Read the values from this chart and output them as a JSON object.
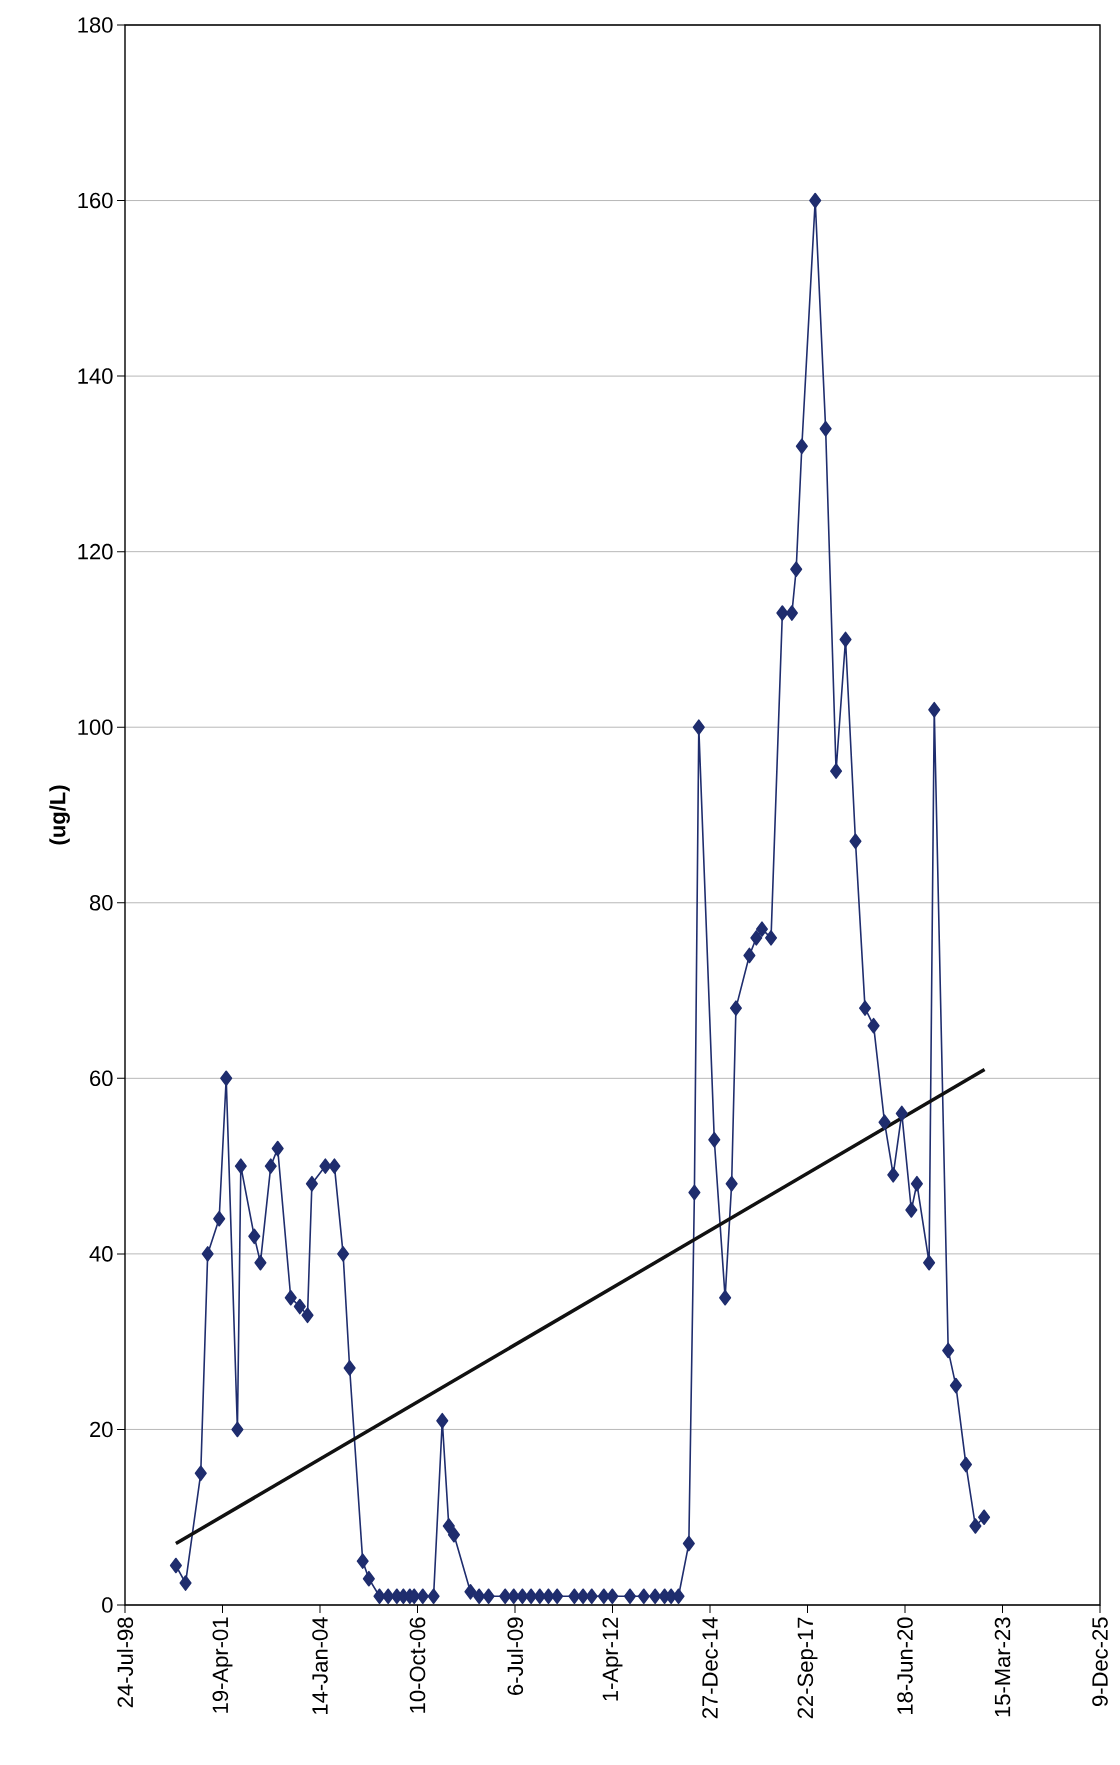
{
  "chart_data": {
    "type": "line",
    "ylabel": "(ug/L)",
    "xlim": [
      "1998-07-24",
      "2025-12-09"
    ],
    "xticks": [
      {
        "value": "1998-07-24",
        "label": "24-Jul-98"
      },
      {
        "value": "2001-04-19",
        "label": "19-Apr-01"
      },
      {
        "value": "2004-01-14",
        "label": "14-Jan-04"
      },
      {
        "value": "2006-10-10",
        "label": "10-Oct-06"
      },
      {
        "value": "2009-07-06",
        "label": "6-Jul-09"
      },
      {
        "value": "2012-04-01",
        "label": "1-Apr-12"
      },
      {
        "value": "2014-12-27",
        "label": "27-Dec-14"
      },
      {
        "value": "2017-09-22",
        "label": "22-Sep-17"
      },
      {
        "value": "2020-06-18",
        "label": "18-Jun-20"
      },
      {
        "value": "2023-03-15",
        "label": "15-Mar-23"
      },
      {
        "value": "2025-12-09",
        "label": "9-Dec-25"
      }
    ],
    "ylim": [
      0,
      180
    ],
    "yticks": [
      0,
      20,
      40,
      60,
      80,
      100,
      120,
      140,
      160,
      180
    ],
    "grid": "y",
    "series": [
      {
        "color": "#1f2d6e",
        "marker": "diamond",
        "line_style": "solid",
        "x": [
          "1999-12-28",
          "2000-04-05",
          "2000-09-08",
          "2000-11-18",
          "2001-03-16",
          "2001-05-27",
          "2001-09-19",
          "2001-10-24",
          "2002-03-11",
          "2002-05-13",
          "2002-08-27",
          "2002-11-06",
          "2003-03-20",
          "2003-06-21",
          "2003-09-08",
          "2003-10-23",
          "2004-03-09",
          "2004-06-10",
          "2004-09-07",
          "2004-11-13",
          "2005-03-27",
          "2005-05-29",
          "2005-09-15",
          "2005-12-13",
          "2006-03-12",
          "2006-05-18",
          "2006-07-23",
          "2006-09-06",
          "2006-12-03",
          "2007-03-24",
          "2007-06-21",
          "2007-08-27",
          "2007-10-19",
          "2008-04-05",
          "2008-07-03",
          "2008-10-08",
          "2009-03-27",
          "2009-06-23",
          "2009-09-20",
          "2009-12-18",
          "2010-03-17",
          "2010-06-14",
          "2010-09-11",
          "2011-03-07",
          "2011-06-04",
          "2011-09-01",
          "2012-01-03",
          "2012-03-30",
          "2012-09-27",
          "2013-02-16",
          "2013-06-12",
          "2013-09-17",
          "2013-11-23",
          "2014-02-07",
          "2014-05-24",
          "2014-07-20",
          "2014-09-03",
          "2015-02-09",
          "2015-05-31",
          "2015-08-06",
          "2015-09-19",
          "2016-02-04",
          "2016-04-15",
          "2016-06-12",
          "2016-09-13",
          "2017-01-07",
          "2017-04-15",
          "2017-05-29",
          "2017-07-26",
          "2017-12-10",
          "2018-03-27",
          "2018-07-12",
          "2018-10-17",
          "2019-01-27",
          "2019-05-05",
          "2019-08-01",
          "2019-11-21",
          "2020-02-18",
          "2020-05-16",
          "2020-08-22",
          "2020-10-18",
          "2021-02-20",
          "2021-04-14",
          "2021-09-04",
          "2021-11-22",
          "2022-03-05",
          "2022-06-10",
          "2022-09-07"
        ],
        "values": [
          4.5,
          2.5,
          15,
          40,
          44,
          60,
          20,
          50,
          42,
          39,
          50,
          52,
          35,
          34,
          33,
          48,
          50,
          50,
          40,
          27,
          5,
          3,
          1,
          1,
          1,
          1,
          1,
          1,
          1,
          1,
          21,
          9,
          8,
          1.5,
          1,
          1,
          1,
          1,
          1,
          1,
          1,
          1,
          1,
          1,
          1,
          1,
          1,
          1,
          1,
          1,
          1,
          1,
          1,
          1,
          7,
          47,
          100,
          53,
          35,
          48,
          68,
          74,
          76,
          77,
          76,
          113,
          113,
          118,
          132,
          160,
          134,
          95,
          110,
          87,
          68,
          66,
          55,
          49,
          56,
          45,
          48,
          39,
          102,
          29,
          25,
          16,
          9,
          10
        ]
      },
      {
        "color": "#111111",
        "marker": "none",
        "line_style": "solid",
        "x": [
          "1999-12-28",
          "2022-09-12"
        ],
        "values": [
          7,
          61
        ]
      }
    ]
  }
}
